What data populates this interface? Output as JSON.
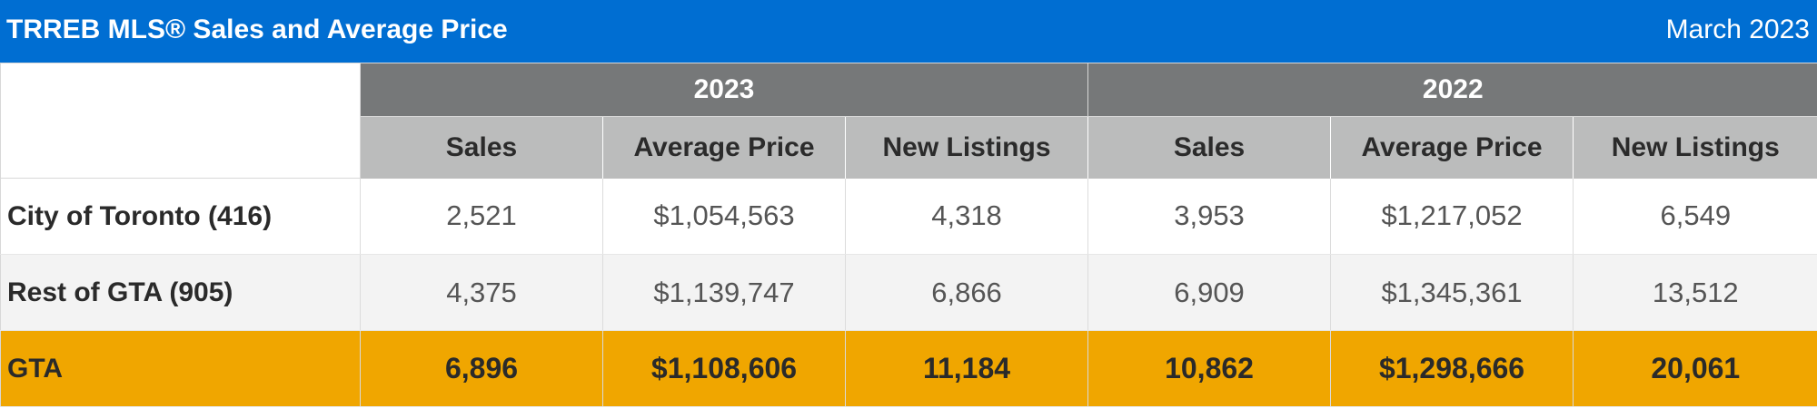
{
  "header": {
    "title": "TRREB MLS® Sales and Average Price",
    "date": "March 2023"
  },
  "table": {
    "years": [
      "2023",
      "2022"
    ],
    "columns": [
      "Sales",
      "Average Price",
      "New Listings",
      "Sales",
      "Average Price",
      "New Listings"
    ],
    "rows": [
      {
        "label": "City of Toronto (416)",
        "values": [
          "2,521",
          "$1,054,563",
          "4,318",
          "3,953",
          "$1,217,052",
          "6,549"
        ]
      },
      {
        "label": "Rest of GTA (905)",
        "values": [
          "4,375",
          "$1,139,747",
          "6,866",
          "6,909",
          "$1,345,361",
          "13,512"
        ]
      },
      {
        "label": "GTA",
        "values": [
          "6,896",
          "$1,108,606",
          "11,184",
          "10,862",
          "$1,298,666",
          "20,061"
        ]
      }
    ]
  },
  "colors": {
    "title_bar": "#006ed2",
    "year_header": "#767879",
    "sub_header": "#bbbcbc",
    "total_row": "#f0a600",
    "alt_row": "#f3f3f3"
  }
}
